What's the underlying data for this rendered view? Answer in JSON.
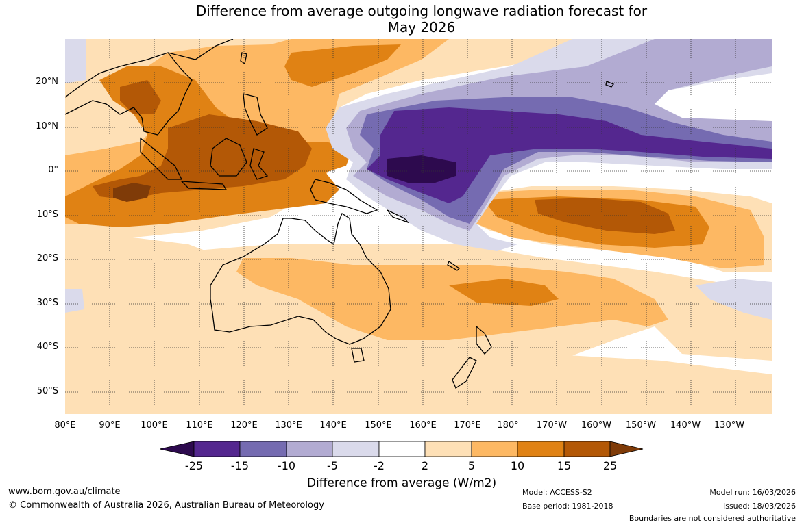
{
  "title": {
    "line1": "Difference from average outgoing longwave radiation forecast for",
    "line2": "May 2026"
  },
  "map": {
    "latitude_labels": [
      "20°N",
      "10°N",
      "0°",
      "10°S",
      "20°S",
      "30°S",
      "40°S",
      "50°S"
    ],
    "longitude_labels": [
      "80°E",
      "90°E",
      "100°E",
      "110°E",
      "120°E",
      "130°E",
      "140°E",
      "150°E",
      "160°E",
      "170°E",
      "180°",
      "170°W",
      "160°W",
      "150°W",
      "140°W",
      "130°W"
    ],
    "lat_range": [
      -55,
      29
    ],
    "lon_range": [
      80,
      238
    ]
  },
  "legend": {
    "levels": [
      "-25",
      "-15",
      "-10",
      "-5",
      "-2",
      "2",
      "5",
      "10",
      "15",
      "25"
    ],
    "colors": [
      "#2d0a4e",
      "#54278f",
      "#756bb1",
      "#b2abd2",
      "#dadaeb",
      "#ffffff",
      "#fee0b6",
      "#fdb863",
      "#e08214",
      "#b35806",
      "#7f3b08"
    ],
    "title": "Difference from average (W/m2)"
  },
  "footer": {
    "website": "www.bom.gov.au/climate",
    "copyright": "© Commonwealth of Australia 2026, Australian Bureau of Meteorology",
    "model": "Model: ACCESS-S2",
    "base_period": "Base period: 1981-2018",
    "model_run": "Model run: 16/03/2026",
    "issued": "Issued: 18/03/2026",
    "disclaimer": "Boundaries are not considered authoritative"
  }
}
